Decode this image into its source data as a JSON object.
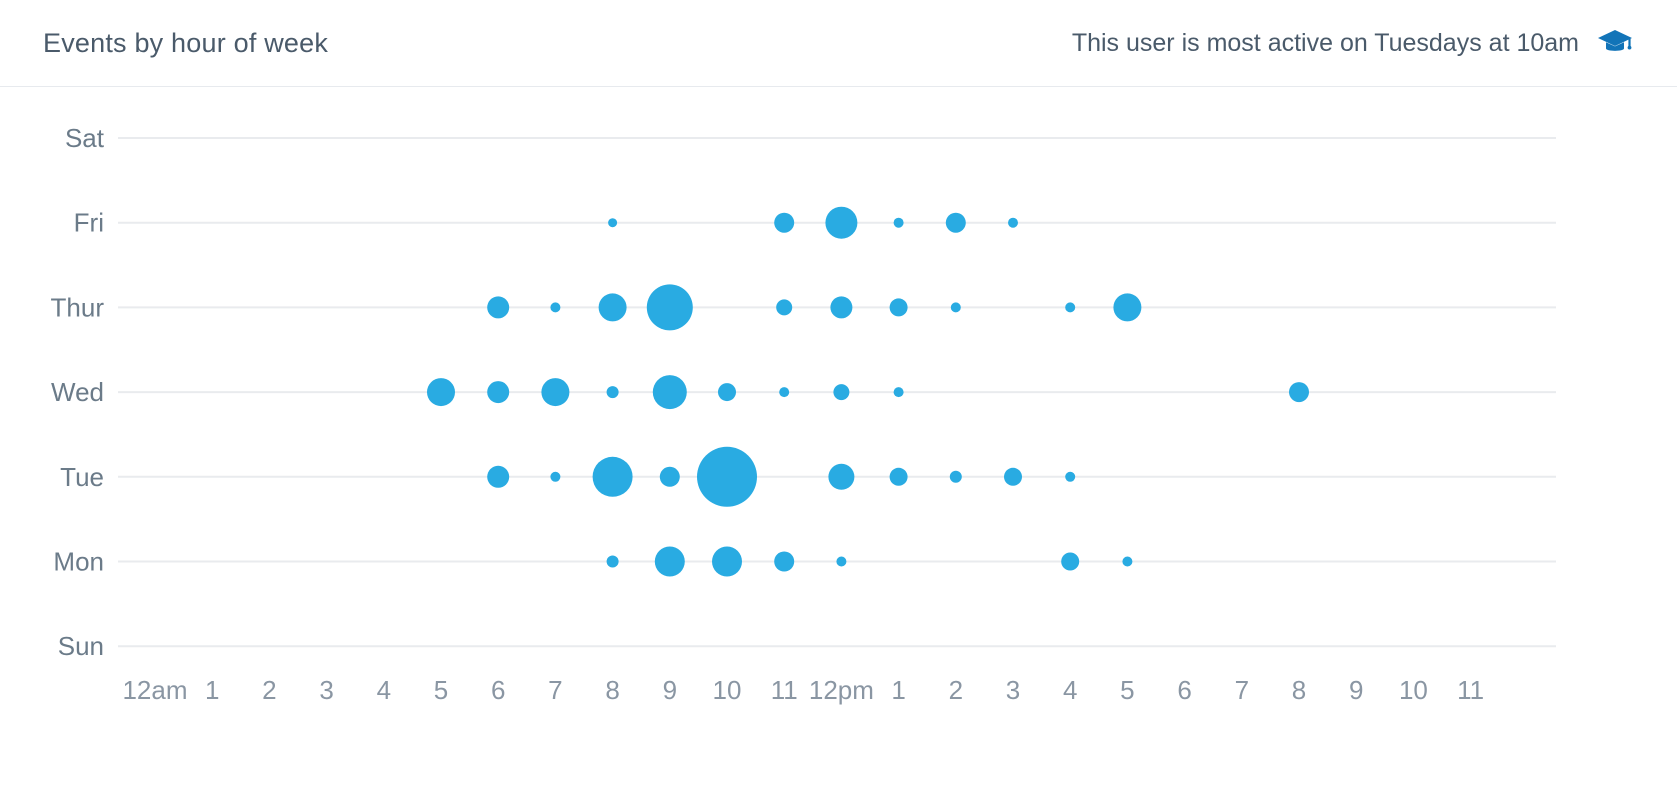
{
  "header": {
    "title": "Events by hour of week",
    "insight": "This user is most active on Tuesdays at 10am",
    "insight_icon": "graduation-cap-icon"
  },
  "colors": {
    "bubble": "#29abe2",
    "grid": "#e9ebee",
    "day_label": "#6b7b89",
    "hour_label": "#8a96a3",
    "title_text": "#4a5a6a",
    "icon_blue": "#1274b8",
    "header_border": "#e7eaee"
  },
  "chart_data": {
    "type": "scatter",
    "subtype": "punchcard-bubble",
    "title": "Events by hour of week",
    "x_labels": [
      "12am",
      "1",
      "2",
      "3",
      "4",
      "5",
      "6",
      "7",
      "8",
      "9",
      "10",
      "11",
      "12pm",
      "1",
      "2",
      "3",
      "4",
      "5",
      "6",
      "7",
      "8",
      "9",
      "10",
      "11"
    ],
    "y_labels_top_to_bottom": [
      "Sat",
      "Fri",
      "Thur",
      "Wed",
      "Tue",
      "Mon",
      "Sun"
    ],
    "x_axis_note": "hour of day, 0 = 12am through 23 = 11pm",
    "size_note": "r is rendered bubble radius in px; larger radius = more events",
    "grid": true,
    "points": [
      {
        "day": "Fri",
        "hour": 8,
        "r": 4.5
      },
      {
        "day": "Fri",
        "hour": 11,
        "r": 10
      },
      {
        "day": "Fri",
        "hour": 12,
        "r": 16
      },
      {
        "day": "Fri",
        "hour": 13,
        "r": 5
      },
      {
        "day": "Fri",
        "hour": 14,
        "r": 10
      },
      {
        "day": "Fri",
        "hour": 15,
        "r": 5
      },
      {
        "day": "Thur",
        "hour": 6,
        "r": 11
      },
      {
        "day": "Thur",
        "hour": 7,
        "r": 5
      },
      {
        "day": "Thur",
        "hour": 8,
        "r": 14
      },
      {
        "day": "Thur",
        "hour": 9,
        "r": 23
      },
      {
        "day": "Thur",
        "hour": 11,
        "r": 8
      },
      {
        "day": "Thur",
        "hour": 12,
        "r": 11
      },
      {
        "day": "Thur",
        "hour": 13,
        "r": 9
      },
      {
        "day": "Thur",
        "hour": 14,
        "r": 5
      },
      {
        "day": "Thur",
        "hour": 16,
        "r": 5
      },
      {
        "day": "Thur",
        "hour": 17,
        "r": 14
      },
      {
        "day": "Wed",
        "hour": 5,
        "r": 14
      },
      {
        "day": "Wed",
        "hour": 6,
        "r": 11
      },
      {
        "day": "Wed",
        "hour": 7,
        "r": 14
      },
      {
        "day": "Wed",
        "hour": 8,
        "r": 6
      },
      {
        "day": "Wed",
        "hour": 9,
        "r": 17
      },
      {
        "day": "Wed",
        "hour": 10,
        "r": 9
      },
      {
        "day": "Wed",
        "hour": 11,
        "r": 5
      },
      {
        "day": "Wed",
        "hour": 12,
        "r": 8
      },
      {
        "day": "Wed",
        "hour": 13,
        "r": 5
      },
      {
        "day": "Wed",
        "hour": 20,
        "r": 10
      },
      {
        "day": "Tue",
        "hour": 6,
        "r": 11
      },
      {
        "day": "Tue",
        "hour": 7,
        "r": 5
      },
      {
        "day": "Tue",
        "hour": 8,
        "r": 20
      },
      {
        "day": "Tue",
        "hour": 9,
        "r": 10
      },
      {
        "day": "Tue",
        "hour": 10,
        "r": 30
      },
      {
        "day": "Tue",
        "hour": 12,
        "r": 13
      },
      {
        "day": "Tue",
        "hour": 13,
        "r": 9
      },
      {
        "day": "Tue",
        "hour": 14,
        "r": 6
      },
      {
        "day": "Tue",
        "hour": 15,
        "r": 9
      },
      {
        "day": "Tue",
        "hour": 16,
        "r": 5
      },
      {
        "day": "Mon",
        "hour": 8,
        "r": 6
      },
      {
        "day": "Mon",
        "hour": 9,
        "r": 15
      },
      {
        "day": "Mon",
        "hour": 10,
        "r": 15
      },
      {
        "day": "Mon",
        "hour": 11,
        "r": 10
      },
      {
        "day": "Mon",
        "hour": 12,
        "r": 5
      },
      {
        "day": "Mon",
        "hour": 16,
        "r": 9
      },
      {
        "day": "Mon",
        "hour": 17,
        "r": 5
      }
    ]
  }
}
